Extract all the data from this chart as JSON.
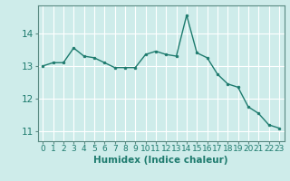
{
  "x": [
    0,
    1,
    2,
    3,
    4,
    5,
    6,
    7,
    8,
    9,
    10,
    11,
    12,
    13,
    14,
    15,
    16,
    17,
    18,
    19,
    20,
    21,
    22,
    23
  ],
  "y": [
    13.0,
    13.1,
    13.1,
    13.55,
    13.3,
    13.25,
    13.1,
    12.95,
    12.95,
    12.95,
    13.35,
    13.45,
    13.35,
    13.3,
    14.55,
    13.4,
    13.25,
    12.75,
    12.45,
    12.35,
    11.75,
    11.55,
    11.2,
    11.1
  ],
  "line_color": "#1e7b6e",
  "marker": "o",
  "markersize": 2.0,
  "linewidth": 1.0,
  "xlabel": "Humidex (Indice chaleur)",
  "xlabel_fontsize": 7.5,
  "ylim": [
    10.7,
    14.85
  ],
  "xlim": [
    -0.5,
    23.5
  ],
  "yticks": [
    11,
    12,
    13,
    14
  ],
  "xticks": [
    0,
    1,
    2,
    3,
    4,
    5,
    6,
    7,
    8,
    9,
    10,
    11,
    12,
    13,
    14,
    15,
    16,
    17,
    18,
    19,
    20,
    21,
    22,
    23
  ],
  "xtick_labels": [
    "0",
    "1",
    "2",
    "3",
    "4",
    "5",
    "6",
    "7",
    "8",
    "9",
    "10",
    "11",
    "12",
    "13",
    "14",
    "15",
    "16",
    "17",
    "18",
    "19",
    "20",
    "21",
    "22",
    "23"
  ],
  "background_color": "#ceecea",
  "grid_color": "#ffffff",
  "tick_fontsize": 6.5,
  "ytick_fontsize": 7.5,
  "tick_color": "#1e7b6e",
  "spine_color": "#5a8a82",
  "xlabel_color": "#1e7b6e"
}
